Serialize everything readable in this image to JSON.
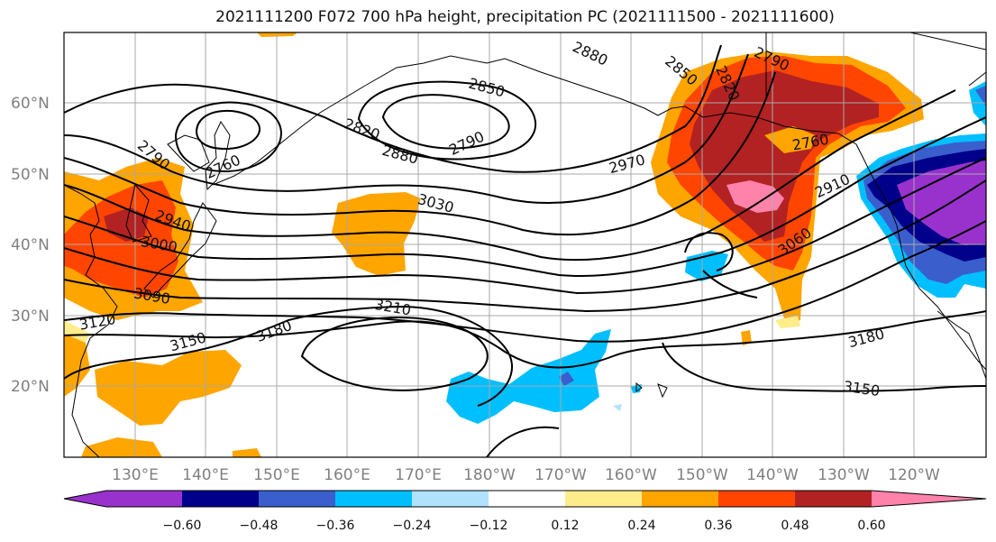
{
  "title": "2021111200 F072 700 hPa height, precipitation PC (2021111500 - 2021111600)",
  "lat_labels": [
    "60°N",
    "50°N",
    "40°N",
    "30°N",
    "20°N"
  ],
  "lon_labels": [
    "130°E",
    "140°E",
    "150°E",
    "160°E",
    "170°E",
    "180°W",
    "170°W",
    "160°W",
    "150°W",
    "140°W",
    "130°W",
    "120°W"
  ],
  "contour_labels": [
    "2790",
    "2760",
    "2820",
    "2850",
    "2790",
    "2880",
    "2850",
    "2820",
    "2790",
    "2760",
    "2880",
    "2940",
    "3000",
    "2970",
    "2910",
    "3030",
    "3060",
    "3090",
    "3120",
    "3150",
    "3180",
    "3210",
    "3180",
    "3150"
  ],
  "colorbar": {
    "ticks": [
      "−0.60",
      "−0.48",
      "−0.36",
      "−0.24",
      "−0.12",
      "0.12",
      "0.24",
      "0.36",
      "0.48",
      "0.60"
    ],
    "colors": [
      "#9932cc",
      "#00008b",
      "#3a5fcd",
      "#00bfff",
      "#b0e2ff",
      "#ffffff",
      "#ffec8b",
      "#ffa500",
      "#ff4500",
      "#b22222",
      "#ff82ab"
    ]
  },
  "colors": {
    "pos_light": "#ffec8b",
    "pos": "#ffa500",
    "pos_mid": "#ff4500",
    "pos_dark": "#b22222",
    "pos_max": "#ff82ab",
    "neg_light": "#b0e2ff",
    "neg": "#00bfff",
    "neg_mid": "#3a5fcd",
    "neg_dark": "#00008b",
    "neg_max": "#9932cc"
  }
}
